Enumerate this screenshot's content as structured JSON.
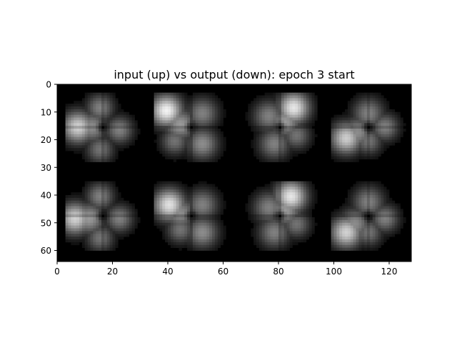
{
  "chart_data": {
    "type": "heatmap",
    "title": "input (up) vs output (down): epoch 3 start",
    "colormap": "gray",
    "background_color": "#000000",
    "xlim": [
      0,
      128
    ],
    "ylim": [
      64,
      0
    ],
    "y_inverted": true,
    "xticks": [
      0,
      20,
      40,
      60,
      80,
      100,
      120
    ],
    "yticks": [
      0,
      10,
      20,
      30,
      40,
      50,
      60
    ],
    "grid": false,
    "legend": "none",
    "tiles": [
      {
        "row": "input",
        "col": 0,
        "center": [
          16,
          15
        ],
        "lobes": [
          {
            "x": 7,
            "y": 15,
            "r": 4,
            "v": 0.82
          },
          {
            "x": 15,
            "y": 8,
            "r": 3.5,
            "v": 0.5
          },
          {
            "x": 22,
            "y": 16,
            "r": 3.5,
            "v": 0.5
          },
          {
            "x": 15,
            "y": 23,
            "r": 3.5,
            "v": 0.45
          },
          {
            "x": 12,
            "y": 15,
            "r": 4,
            "v": 0.55
          }
        ]
      },
      {
        "row": "input",
        "col": 1,
        "center": [
          48,
          15
        ],
        "lobes": [
          {
            "x": 39,
            "y": 9,
            "r": 4,
            "v": 0.95
          },
          {
            "x": 52,
            "y": 10,
            "r": 4,
            "v": 0.5
          },
          {
            "x": 52,
            "y": 21,
            "r": 4,
            "v": 0.55
          },
          {
            "x": 42,
            "y": 20,
            "r": 3.5,
            "v": 0.45
          },
          {
            "x": 44,
            "y": 14,
            "r": 4,
            "v": 0.6
          }
        ]
      },
      {
        "row": "input",
        "col": 2,
        "center": [
          80,
          15
        ],
        "lobes": [
          {
            "x": 85,
            "y": 8,
            "r": 4,
            "v": 0.9
          },
          {
            "x": 76,
            "y": 11,
            "r": 4,
            "v": 0.5
          },
          {
            "x": 78,
            "y": 21,
            "r": 4,
            "v": 0.5
          },
          {
            "x": 86,
            "y": 18,
            "r": 3.5,
            "v": 0.45
          },
          {
            "x": 82,
            "y": 13,
            "r": 4,
            "v": 0.6
          }
        ]
      },
      {
        "row": "input",
        "col": 3,
        "center": [
          112,
          15
        ],
        "lobes": [
          {
            "x": 104,
            "y": 19,
            "r": 4,
            "v": 0.8
          },
          {
            "x": 112,
            "y": 10,
            "r": 4,
            "v": 0.5
          },
          {
            "x": 118,
            "y": 15,
            "r": 3.5,
            "v": 0.5
          },
          {
            "x": 112,
            "y": 20,
            "r": 3.5,
            "v": 0.45
          },
          {
            "x": 108,
            "y": 17,
            "r": 4,
            "v": 0.55
          }
        ]
      },
      {
        "row": "output",
        "col": 0,
        "center": [
          16,
          47
        ],
        "lobes": [
          {
            "x": 6,
            "y": 48,
            "r": 4,
            "v": 0.82
          },
          {
            "x": 15,
            "y": 40,
            "r": 3.5,
            "v": 0.5
          },
          {
            "x": 22,
            "y": 48,
            "r": 3.5,
            "v": 0.5
          },
          {
            "x": 15,
            "y": 55,
            "r": 3.5,
            "v": 0.45
          },
          {
            "x": 11,
            "y": 48,
            "r": 4,
            "v": 0.6
          }
        ]
      },
      {
        "row": "output",
        "col": 1,
        "center": [
          48,
          47
        ],
        "lobes": [
          {
            "x": 40,
            "y": 43,
            "r": 4,
            "v": 0.88
          },
          {
            "x": 52,
            "y": 43,
            "r": 4,
            "v": 0.5
          },
          {
            "x": 52,
            "y": 53,
            "r": 4,
            "v": 0.55
          },
          {
            "x": 44,
            "y": 52,
            "r": 3.5,
            "v": 0.45
          },
          {
            "x": 44,
            "y": 46,
            "r": 4,
            "v": 0.55
          }
        ]
      },
      {
        "row": "output",
        "col": 2,
        "center": [
          80,
          47
        ],
        "lobes": [
          {
            "x": 84,
            "y": 40,
            "r": 4,
            "v": 0.9
          },
          {
            "x": 76,
            "y": 44,
            "r": 4,
            "v": 0.5
          },
          {
            "x": 78,
            "y": 53,
            "r": 4,
            "v": 0.5
          },
          {
            "x": 86,
            "y": 50,
            "r": 3.5,
            "v": 0.45
          },
          {
            "x": 82,
            "y": 45,
            "r": 4,
            "v": 0.6
          }
        ]
      },
      {
        "row": "output",
        "col": 3,
        "center": [
          112,
          47
        ],
        "lobes": [
          {
            "x": 104,
            "y": 53,
            "r": 4,
            "v": 0.82
          },
          {
            "x": 112,
            "y": 42,
            "r": 4,
            "v": 0.5
          },
          {
            "x": 118,
            "y": 48,
            "r": 3.5,
            "v": 0.5
          },
          {
            "x": 112,
            "y": 53,
            "r": 3.5,
            "v": 0.45
          },
          {
            "x": 107,
            "y": 50,
            "r": 4,
            "v": 0.55
          }
        ]
      }
    ]
  }
}
